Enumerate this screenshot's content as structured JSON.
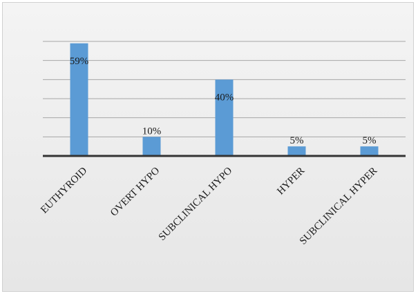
{
  "chart_data": {
    "type": "bar",
    "categories": [
      "EUTHYROID",
      "OVERT HYPO",
      "SUBCLINICAL HYPO",
      "HYPER",
      "SUBCLINICAL HYPER"
    ],
    "values": [
      59,
      10,
      40,
      5,
      5
    ],
    "data_labels": [
      "59%",
      "10%",
      "40%",
      "5%",
      "5%"
    ],
    "ylim": [
      0,
      60
    ],
    "grid": true,
    "legend": "none",
    "bar_color": "#5b9bd5",
    "gridline_color": "#a6a6a6",
    "axis_color": "#333333"
  }
}
